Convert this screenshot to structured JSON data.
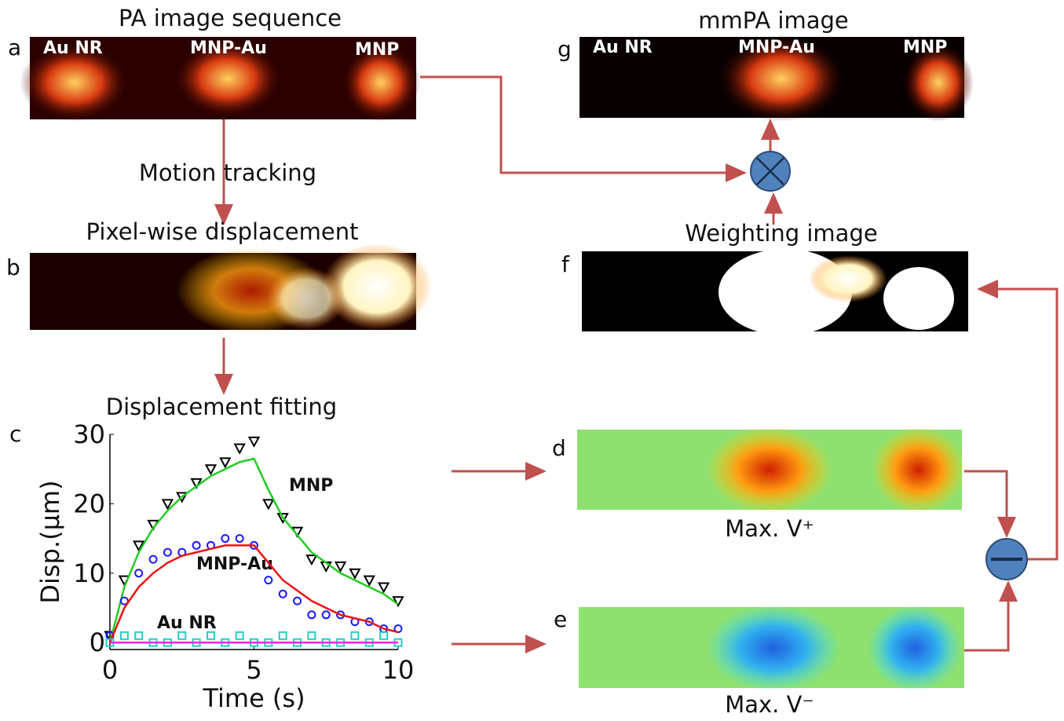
{
  "panels": {
    "a": {
      "letter": "a",
      "title": "PA image sequence",
      "labels": [
        "Au NR",
        "MNP-Au",
        "MNP"
      ]
    },
    "b": {
      "letter": "b",
      "title": "Pixel-wise displacement"
    },
    "c": {
      "letter": "c",
      "title": "Displacement fitting"
    },
    "d": {
      "letter": "d",
      "caption": "Max. V⁺"
    },
    "e": {
      "letter": "e",
      "caption": "Max. V⁻"
    },
    "f": {
      "letter": "f",
      "title": "Weighting image"
    },
    "g": {
      "letter": "g",
      "title": "mmPA image",
      "labels": [
        "Au NR",
        "MNP-Au",
        "MNP"
      ]
    }
  },
  "steps": {
    "motion": "Motion tracking"
  },
  "chart_data": {
    "type": "scatter",
    "xlabel": "Time (s)",
    "ylabel": "Disp.(μm)",
    "xlim": [
      0,
      10
    ],
    "xticks": [
      0,
      5,
      10
    ],
    "ylim": [
      -1,
      30
    ],
    "yticks": [
      0,
      10,
      20,
      30
    ],
    "x": [
      0,
      0.5,
      1,
      1.5,
      2,
      2.5,
      3,
      3.5,
      4,
      4.5,
      5,
      5.5,
      6,
      6.5,
      7,
      7.5,
      8,
      8.5,
      9,
      9.5,
      10
    ],
    "series": [
      {
        "name": "MNP",
        "marker": "triangle",
        "color": "#000000",
        "values": [
          1,
          9,
          14,
          17,
          20,
          21,
          23,
          25,
          26,
          28,
          29,
          20,
          18,
          16,
          12,
          11,
          11,
          10,
          9,
          8,
          6
        ]
      },
      {
        "marker": "line",
        "color": "#22cc22",
        "values": [
          0,
          8,
          13,
          16.5,
          19,
          21,
          22.5,
          24,
          25,
          26,
          26.5,
          22,
          18,
          15.5,
          13,
          11.5,
          10,
          9,
          8,
          7,
          5.5
        ]
      },
      {
        "name": "MNP-Au",
        "marker": "circle",
        "color": "#1a1aff",
        "values": [
          1,
          6,
          10,
          12,
          13,
          13,
          14,
          14,
          15,
          15,
          14,
          9,
          7,
          6,
          4,
          4,
          4,
          3,
          3,
          2,
          2
        ]
      },
      {
        "marker": "line",
        "color": "#ee1111",
        "values": [
          0,
          5,
          8,
          10,
          11.5,
          12.5,
          13,
          13.5,
          14,
          14,
          14,
          11.5,
          9,
          7.5,
          6,
          5,
          4,
          3.5,
          3,
          2,
          1.5
        ]
      },
      {
        "name": "Au NR",
        "marker": "square",
        "color": "#22cccc",
        "values": [
          0,
          1,
          1,
          0,
          0,
          1,
          0,
          1,
          0,
          1,
          0,
          0,
          1,
          0,
          1,
          0,
          0,
          1,
          0,
          1,
          0
        ]
      },
      {
        "marker": "line",
        "color": "#ee22ee",
        "x": [
          0,
          10
        ],
        "values": [
          0,
          0
        ]
      }
    ]
  }
}
